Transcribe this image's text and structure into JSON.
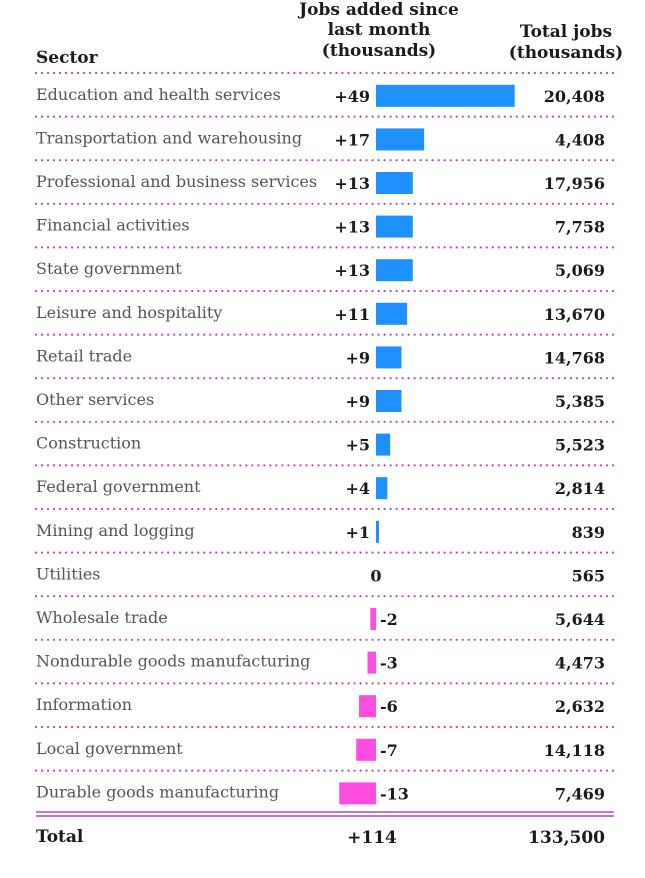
{
  "chart_data": {
    "type": "table",
    "columns": {
      "sector": "Sector",
      "change_line1": "Jobs added since",
      "change_line2": "last month",
      "change_line3": "(thousands)",
      "total_line1": "Total jobs",
      "total_line2": "(thousands)"
    },
    "rows": [
      {
        "sector": "Education and health services",
        "change": 49,
        "change_label": "+49",
        "total": "20,408"
      },
      {
        "sector": "Transportation and warehousing",
        "change": 17,
        "change_label": "+17",
        "total": "4,408"
      },
      {
        "sector": "Professional and business services",
        "change": 13,
        "change_label": "+13",
        "total": "17,956"
      },
      {
        "sector": "Financial activities",
        "change": 13,
        "change_label": "+13",
        "total": "7,758"
      },
      {
        "sector": "State government",
        "change": 13,
        "change_label": "+13",
        "total": "5,069"
      },
      {
        "sector": "Leisure and hospitality",
        "change": 11,
        "change_label": "+11",
        "total": "13,670"
      },
      {
        "sector": "Retail trade",
        "change": 9,
        "change_label": "+9",
        "total": "14,768"
      },
      {
        "sector": "Other services",
        "change": 9,
        "change_label": "+9",
        "total": "5,385"
      },
      {
        "sector": "Construction",
        "change": 5,
        "change_label": "+5",
        "total": "5,523"
      },
      {
        "sector": "Federal government",
        "change": 4,
        "change_label": "+4",
        "total": "2,814"
      },
      {
        "sector": "Mining and logging",
        "change": 1,
        "change_label": "+1",
        "total": "839"
      },
      {
        "sector": "Utilities",
        "change": 0,
        "change_label": "0",
        "total": "565"
      },
      {
        "sector": "Wholesale trade",
        "change": -2,
        "change_label": "-2",
        "total": "5,644"
      },
      {
        "sector": "Nondurable goods manufacturing",
        "change": -3,
        "change_label": "-3",
        "total": "4,473"
      },
      {
        "sector": "Information",
        "change": -6,
        "change_label": "-6",
        "total": "2,632"
      },
      {
        "sector": "Local government",
        "change": -7,
        "change_label": "-7",
        "total": "14,118"
      },
      {
        "sector": "Durable goods manufacturing",
        "change": -13,
        "change_label": "-13",
        "total": "7,469"
      }
    ],
    "total_row": {
      "sector": "Total",
      "change_label": "+114",
      "total": "133,500"
    },
    "colors": {
      "positive": "#1e90ff",
      "negative": "#ff4de1",
      "divider": "#b24ab8"
    }
  }
}
